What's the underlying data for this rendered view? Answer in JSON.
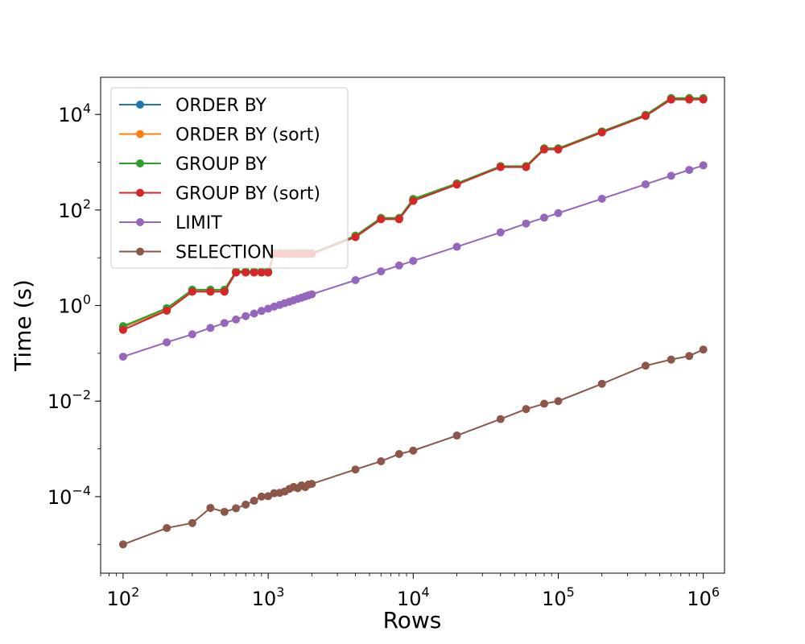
{
  "chart_data": {
    "type": "line",
    "title": "",
    "xlabel": "Rows",
    "ylabel": "Time (s)",
    "xscale": "log",
    "yscale": "log",
    "xlim": [
      70,
      1400000
    ],
    "ylim": [
      2.5e-06,
      60000
    ],
    "xticks": [
      {
        "value": 100,
        "base": "10",
        "exp": "2"
      },
      {
        "value": 1000,
        "base": "10",
        "exp": "3"
      },
      {
        "value": 10000,
        "base": "10",
        "exp": "4"
      },
      {
        "value": 100000,
        "base": "10",
        "exp": "5"
      },
      {
        "value": 1000000,
        "base": "10",
        "exp": "6"
      }
    ],
    "yticks": [
      {
        "value": 0.0001,
        "base": "10",
        "exp": "−4"
      },
      {
        "value": 0.01,
        "base": "10",
        "exp": "−2"
      },
      {
        "value": 1,
        "base": "10",
        "exp": "0"
      },
      {
        "value": 100,
        "base": "10",
        "exp": "2"
      },
      {
        "value": 10000,
        "base": "10",
        "exp": "4"
      }
    ],
    "grid": false,
    "legend_position": "top-left",
    "series": [
      {
        "name": "ORDER BY",
        "color": "#1f77b4",
        "points": [
          [
            100,
            0.35
          ],
          [
            200,
            0.82
          ],
          [
            300,
            2.0
          ],
          [
            400,
            2.0
          ],
          [
            500,
            2.0
          ],
          [
            600,
            5.0
          ],
          [
            700,
            5.0
          ],
          [
            800,
            5.0
          ],
          [
            900,
            5.0
          ],
          [
            1000,
            5.0
          ],
          [
            1100,
            12
          ],
          [
            1200,
            12
          ],
          [
            1300,
            12
          ],
          [
            1400,
            12
          ],
          [
            1500,
            12
          ],
          [
            1600,
            12
          ],
          [
            1700,
            12
          ],
          [
            1800,
            12
          ],
          [
            1900,
            12
          ],
          [
            2000,
            12
          ],
          [
            4000,
            28
          ],
          [
            6000,
            65
          ],
          [
            8000,
            65
          ],
          [
            10000,
            160
          ],
          [
            20000,
            350
          ],
          [
            40000,
            800
          ],
          [
            60000,
            800
          ],
          [
            80000,
            1900
          ],
          [
            100000,
            1900
          ],
          [
            200000,
            4300
          ],
          [
            400000,
            9500
          ],
          [
            600000,
            21000
          ],
          [
            800000,
            21000
          ],
          [
            1000000,
            21000
          ]
        ]
      },
      {
        "name": "ORDER BY (sort)",
        "color": "#ff7f0e",
        "points": [
          [
            100,
            0.35
          ],
          [
            200,
            0.85
          ],
          [
            300,
            2.05
          ],
          [
            400,
            2.05
          ],
          [
            500,
            2.05
          ],
          [
            600,
            5.1
          ],
          [
            700,
            5.1
          ],
          [
            800,
            5.1
          ],
          [
            900,
            5.1
          ],
          [
            1000,
            5.1
          ],
          [
            1100,
            12.5
          ],
          [
            1200,
            12.5
          ],
          [
            1300,
            12.5
          ],
          [
            1400,
            12.5
          ],
          [
            1500,
            12.5
          ],
          [
            1600,
            12.5
          ],
          [
            1700,
            12.5
          ],
          [
            1800,
            12.5
          ],
          [
            1900,
            12.5
          ],
          [
            2000,
            12.5
          ],
          [
            4000,
            29
          ],
          [
            6000,
            68
          ],
          [
            8000,
            68
          ],
          [
            10000,
            170
          ],
          [
            20000,
            360
          ],
          [
            40000,
            820
          ],
          [
            60000,
            820
          ],
          [
            80000,
            1950
          ],
          [
            100000,
            1950
          ],
          [
            200000,
            4400
          ],
          [
            400000,
            9800
          ],
          [
            600000,
            22000
          ],
          [
            800000,
            22000
          ],
          [
            1000000,
            22000
          ]
        ]
      },
      {
        "name": "GROUP BY",
        "color": "#2ca02c",
        "points": [
          [
            100,
            0.37
          ],
          [
            200,
            0.88
          ],
          [
            300,
            2.15
          ],
          [
            400,
            2.15
          ],
          [
            500,
            2.15
          ],
          [
            600,
            5.2
          ],
          [
            700,
            5.2
          ],
          [
            800,
            5.2
          ],
          [
            900,
            5.2
          ],
          [
            1000,
            5.2
          ],
          [
            1100,
            12.5
          ],
          [
            1200,
            12.5
          ],
          [
            1300,
            12.5
          ],
          [
            1400,
            12.5
          ],
          [
            1500,
            12.5
          ],
          [
            1600,
            12.5
          ],
          [
            1700,
            12.5
          ],
          [
            1800,
            12.5
          ],
          [
            1900,
            12.5
          ],
          [
            2000,
            12.5
          ],
          [
            4000,
            29
          ],
          [
            6000,
            68
          ],
          [
            8000,
            68
          ],
          [
            10000,
            170
          ],
          [
            20000,
            360
          ],
          [
            40000,
            830
          ],
          [
            60000,
            830
          ],
          [
            80000,
            1950
          ],
          [
            100000,
            1950
          ],
          [
            200000,
            4400
          ],
          [
            400000,
            9800
          ],
          [
            600000,
            22000
          ],
          [
            800000,
            22000
          ],
          [
            1000000,
            22000
          ]
        ]
      },
      {
        "name": "GROUP BY (sort)",
        "color": "#d62728",
        "points": [
          [
            100,
            0.31
          ],
          [
            200,
            0.78
          ],
          [
            300,
            1.95
          ],
          [
            400,
            1.95
          ],
          [
            500,
            1.95
          ],
          [
            600,
            4.9
          ],
          [
            700,
            4.9
          ],
          [
            800,
            4.9
          ],
          [
            900,
            4.9
          ],
          [
            1000,
            4.9
          ],
          [
            1100,
            12
          ],
          [
            1200,
            12
          ],
          [
            1300,
            12
          ],
          [
            1400,
            12
          ],
          [
            1500,
            12
          ],
          [
            1600,
            12
          ],
          [
            1700,
            12
          ],
          [
            1800,
            12
          ],
          [
            1900,
            12
          ],
          [
            2000,
            12
          ],
          [
            4000,
            27
          ],
          [
            6000,
            64
          ],
          [
            8000,
            64
          ],
          [
            10000,
            155
          ],
          [
            20000,
            340
          ],
          [
            40000,
            790
          ],
          [
            60000,
            790
          ],
          [
            80000,
            1850
          ],
          [
            100000,
            1850
          ],
          [
            200000,
            4200
          ],
          [
            400000,
            9300
          ],
          [
            600000,
            20500
          ],
          [
            800000,
            20500
          ],
          [
            1000000,
            20500
          ]
        ]
      },
      {
        "name": "LIMIT",
        "color": "#9467bd",
        "points": [
          [
            100,
            0.085
          ],
          [
            200,
            0.17
          ],
          [
            300,
            0.25
          ],
          [
            400,
            0.34
          ],
          [
            500,
            0.43
          ],
          [
            600,
            0.51
          ],
          [
            700,
            0.6
          ],
          [
            800,
            0.68
          ],
          [
            900,
            0.77
          ],
          [
            1000,
            0.86
          ],
          [
            1100,
            0.95
          ],
          [
            1200,
            1.03
          ],
          [
            1300,
            1.12
          ],
          [
            1400,
            1.2
          ],
          [
            1500,
            1.29
          ],
          [
            1600,
            1.38
          ],
          [
            1700,
            1.46
          ],
          [
            1800,
            1.55
          ],
          [
            1900,
            1.64
          ],
          [
            2000,
            1.72
          ],
          [
            4000,
            3.4
          ],
          [
            6000,
            5.2
          ],
          [
            8000,
            6.9
          ],
          [
            10000,
            8.6
          ],
          [
            20000,
            17
          ],
          [
            40000,
            34
          ],
          [
            60000,
            52
          ],
          [
            80000,
            69
          ],
          [
            100000,
            86
          ],
          [
            200000,
            172
          ],
          [
            400000,
            345
          ],
          [
            600000,
            520
          ],
          [
            800000,
            690
          ],
          [
            1000000,
            860
          ]
        ]
      },
      {
        "name": "SELECTION",
        "color": "#8c564b",
        "points": [
          [
            100,
            1e-05
          ],
          [
            200,
            2.2e-05
          ],
          [
            300,
            2.8e-05
          ],
          [
            400,
            5.8e-05
          ],
          [
            500,
            4.8e-05
          ],
          [
            600,
            5.7e-05
          ],
          [
            700,
            6.8e-05
          ],
          [
            800,
            8.2e-05
          ],
          [
            900,
            0.0001
          ],
          [
            1000,
            0.000102
          ],
          [
            1100,
            0.000118
          ],
          [
            1200,
            0.00012
          ],
          [
            1300,
            0.000128
          ],
          [
            1400,
            0.000145
          ],
          [
            1500,
            0.00016
          ],
          [
            1600,
            0.00015
          ],
          [
            1700,
            0.000172
          ],
          [
            1800,
            0.000158
          ],
          [
            1900,
            0.00018
          ],
          [
            2000,
            0.000185
          ],
          [
            4000,
            0.00037
          ],
          [
            6000,
            0.00055
          ],
          [
            8000,
            0.00078
          ],
          [
            10000,
            0.00092
          ],
          [
            20000,
            0.0019
          ],
          [
            40000,
            0.0042
          ],
          [
            60000,
            0.0068
          ],
          [
            80000,
            0.0088
          ],
          [
            100000,
            0.01
          ],
          [
            200000,
            0.023
          ],
          [
            400000,
            0.055
          ],
          [
            600000,
            0.074
          ],
          [
            800000,
            0.088
          ],
          [
            1000000,
            0.12
          ]
        ]
      }
    ]
  }
}
